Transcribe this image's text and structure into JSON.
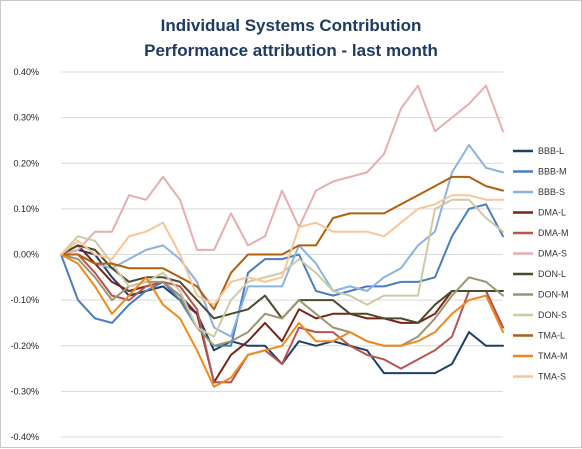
{
  "chart_data": {
    "type": "line",
    "title": "Individual Systems Contribution",
    "subtitle": "Performance attribution - last month",
    "xlabel": "",
    "ylabel": "",
    "ylim": [
      -0.4,
      0.4
    ],
    "yticks": [
      0.4,
      0.3,
      0.2,
      0.1,
      0.0,
      -0.1,
      -0.2,
      -0.3,
      -0.4
    ],
    "ytick_labels": [
      "0.40%",
      "0.30%",
      "0.20%",
      "0.10%",
      "0.00%",
      "-0.10%",
      "-0.20%",
      "-0.30%",
      "-0.40%"
    ],
    "x": [
      1,
      2,
      3,
      4,
      5,
      6,
      7,
      8,
      9,
      10,
      11,
      12,
      13,
      14,
      15,
      16,
      17,
      18,
      19,
      20,
      21,
      22,
      23,
      24,
      25,
      26,
      27
    ],
    "grid": "horizontal",
    "legend_position": "right",
    "series": [
      {
        "name": "BBB-L",
        "color": "#1f3f66",
        "values": [
          0.0,
          0.01,
          0.0,
          -0.05,
          -0.09,
          -0.08,
          -0.07,
          -0.1,
          -0.13,
          -0.21,
          -0.19,
          -0.2,
          -0.2,
          -0.24,
          -0.19,
          -0.2,
          -0.19,
          -0.2,
          -0.21,
          -0.26,
          -0.26,
          -0.26,
          -0.26,
          -0.24,
          -0.17,
          -0.2,
          -0.2
        ]
      },
      {
        "name": "BBB-M",
        "color": "#4a7ec0",
        "values": [
          0.0,
          -0.1,
          -0.14,
          -0.15,
          -0.11,
          -0.08,
          -0.06,
          -0.1,
          -0.16,
          -0.2,
          -0.2,
          -0.04,
          -0.01,
          -0.01,
          0.0,
          -0.08,
          -0.09,
          -0.08,
          -0.07,
          -0.07,
          -0.06,
          -0.06,
          -0.05,
          0.04,
          0.1,
          0.11,
          0.04
        ]
      },
      {
        "name": "BBB-S",
        "color": "#8ab3e2",
        "values": [
          0.0,
          0.0,
          -0.02,
          -0.03,
          -0.01,
          0.01,
          0.02,
          -0.01,
          -0.06,
          -0.16,
          -0.18,
          -0.07,
          -0.07,
          -0.07,
          0.02,
          -0.02,
          -0.08,
          -0.07,
          -0.08,
          -0.05,
          -0.03,
          0.02,
          0.05,
          0.18,
          0.24,
          0.19,
          0.18
        ]
      },
      {
        "name": "DMA-L",
        "color": "#7a2418",
        "values": [
          0.0,
          0.02,
          -0.02,
          -0.06,
          -0.08,
          -0.07,
          -0.06,
          -0.09,
          -0.13,
          -0.28,
          -0.22,
          -0.19,
          -0.15,
          -0.19,
          -0.12,
          -0.14,
          -0.13,
          -0.13,
          -0.14,
          -0.14,
          -0.15,
          -0.15,
          -0.13,
          -0.08,
          -0.08,
          -0.08,
          -0.16
        ]
      },
      {
        "name": "DMA-M",
        "color": "#b85550",
        "values": [
          0.0,
          0.0,
          -0.04,
          -0.09,
          -0.1,
          -0.07,
          -0.06,
          -0.07,
          -0.12,
          -0.28,
          -0.28,
          -0.22,
          -0.21,
          -0.24,
          -0.16,
          -0.17,
          -0.17,
          -0.2,
          -0.22,
          -0.23,
          -0.25,
          -0.23,
          -0.21,
          -0.18,
          -0.08,
          -0.08,
          -0.16
        ]
      },
      {
        "name": "DMA-S",
        "color": "#e6aeae",
        "values": [
          0.0,
          0.01,
          0.05,
          0.05,
          0.13,
          0.12,
          0.17,
          0.12,
          0.01,
          0.01,
          0.09,
          0.02,
          0.04,
          0.14,
          0.06,
          0.14,
          0.16,
          0.17,
          0.18,
          0.22,
          0.32,
          0.37,
          0.27,
          0.3,
          0.33,
          0.37,
          0.27
        ]
      },
      {
        "name": "DON-L",
        "color": "#4c4a2c",
        "values": [
          0.0,
          0.02,
          0.01,
          -0.03,
          -0.06,
          -0.05,
          -0.05,
          -0.06,
          -0.1,
          -0.14,
          -0.13,
          -0.12,
          -0.09,
          -0.14,
          -0.1,
          -0.1,
          -0.1,
          -0.13,
          -0.13,
          -0.14,
          -0.14,
          -0.15,
          -0.11,
          -0.08,
          -0.08,
          -0.08,
          -0.08
        ]
      },
      {
        "name": "DON-M",
        "color": "#9c9670",
        "values": [
          0.0,
          -0.01,
          -0.05,
          -0.1,
          -0.07,
          -0.06,
          -0.06,
          -0.09,
          -0.16,
          -0.2,
          -0.19,
          -0.17,
          -0.13,
          -0.14,
          -0.1,
          -0.13,
          -0.16,
          -0.17,
          -0.19,
          -0.2,
          -0.2,
          -0.18,
          -0.14,
          -0.09,
          -0.05,
          -0.06,
          -0.09
        ]
      },
      {
        "name": "DON-S",
        "color": "#cfc9a4",
        "values": [
          0.0,
          0.04,
          0.03,
          -0.02,
          -0.07,
          -0.06,
          -0.04,
          -0.08,
          -0.16,
          -0.18,
          -0.1,
          -0.06,
          -0.05,
          -0.04,
          -0.01,
          -0.04,
          -0.08,
          -0.09,
          -0.11,
          -0.09,
          -0.09,
          -0.09,
          0.1,
          0.12,
          0.12,
          0.08,
          0.05
        ]
      },
      {
        "name": "TMA-L",
        "color": "#b05f0a",
        "values": [
          0.0,
          0.0,
          -0.02,
          -0.02,
          -0.03,
          -0.03,
          -0.03,
          -0.05,
          -0.07,
          -0.12,
          -0.04,
          0.0,
          0.0,
          0.0,
          0.02,
          0.02,
          0.08,
          0.09,
          0.09,
          0.09,
          0.11,
          0.13,
          0.15,
          0.17,
          0.17,
          0.15,
          0.14
        ]
      },
      {
        "name": "TMA-M",
        "color": "#ee8a1e",
        "values": [
          0.0,
          -0.02,
          -0.07,
          -0.13,
          -0.09,
          -0.05,
          -0.11,
          -0.14,
          -0.21,
          -0.29,
          -0.27,
          -0.22,
          -0.21,
          -0.2,
          -0.15,
          -0.19,
          -0.19,
          -0.17,
          -0.19,
          -0.2,
          -0.2,
          -0.19,
          -0.17,
          -0.13,
          -0.1,
          -0.09,
          -0.17
        ]
      },
      {
        "name": "TMA-S",
        "color": "#f7c596",
        "values": [
          0.0,
          0.03,
          0.0,
          -0.01,
          0.04,
          0.05,
          0.07,
          0.0,
          -0.09,
          -0.11,
          -0.06,
          -0.05,
          -0.06,
          -0.05,
          0.06,
          0.07,
          0.05,
          0.05,
          0.05,
          0.04,
          0.07,
          0.1,
          0.11,
          0.13,
          0.13,
          0.12,
          0.12
        ]
      }
    ]
  }
}
